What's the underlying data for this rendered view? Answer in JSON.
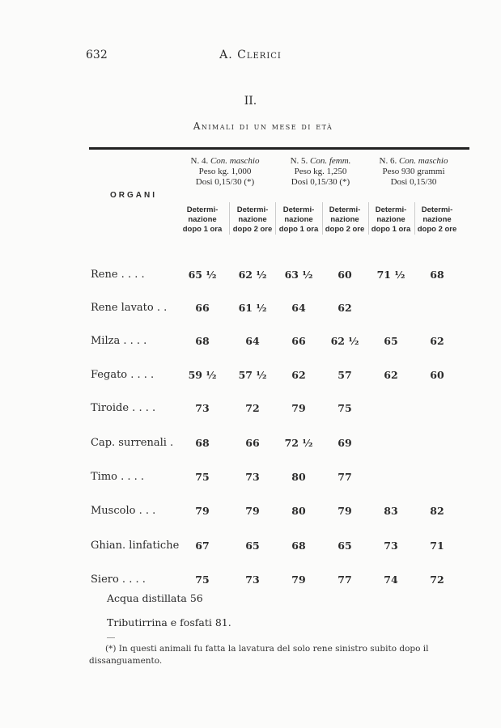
{
  "header": {
    "page_number": "632",
    "running_title": "A. Clerici"
  },
  "section": {
    "number": "II.",
    "title": "Animali di un mese di età"
  },
  "table": {
    "row_header": "ORGANI",
    "groups": [
      {
        "line1_num": "N. 4.",
        "line1_desc": "Con. maschio",
        "line2": "Peso kg. 1,000",
        "line3": "Dosi 0,15/30 (*)"
      },
      {
        "line1_num": "N. 5.",
        "line1_desc": "Con. femm.",
        "line2": "Peso kg. 1,250",
        "line3": "Dosi 0,15/30 (*)"
      },
      {
        "line1_num": "N. 6.",
        "line1_desc": "Con. maschio",
        "line2": "Peso 930 grammi",
        "line3": "Dosi 0,15/30"
      }
    ],
    "subheaders": [
      "Determi-\nnazione\ndopo 1 ora",
      "Determi-\nnazione\ndopo 2 ore",
      "Determi-\nnazione\ndopo 1 ora",
      "Determi-\nnazione\ndopo 2 ore",
      "Determi-\nnazione\ndopo 1 ora",
      "Determi-\nnazione\ndopo 2 ore"
    ],
    "rows": [
      {
        "organ": "Rene . . . .",
        "values": [
          "65 ½",
          "62 ½",
          "63 ½",
          "60",
          "71 ½",
          "68"
        ]
      },
      {
        "organ": "Rene lavato . .",
        "values": [
          "66",
          "61 ½",
          "64",
          "62",
          "",
          ""
        ]
      },
      {
        "organ": "Milza . . . .",
        "values": [
          "68",
          "64",
          "66",
          "62 ½",
          "65",
          "62"
        ]
      },
      {
        "organ": "Fegato . . . .",
        "values": [
          "59 ½",
          "57 ½",
          "62",
          "57",
          "62",
          "60"
        ]
      },
      {
        "organ": "Tiroide . . . .",
        "values": [
          "73",
          "72",
          "79",
          "75",
          "",
          ""
        ]
      },
      {
        "organ": "Cap. surrenali .",
        "values": [
          "68",
          "66",
          "72 ½",
          "69",
          "",
          ""
        ]
      },
      {
        "organ": "Timo . . . .",
        "values": [
          "75",
          "73",
          "80",
          "77",
          "",
          ""
        ]
      },
      {
        "organ": "Muscolo . . .",
        "values": [
          "79",
          "79",
          "80",
          "79",
          "83",
          "82"
        ]
      },
      {
        "organ": "Ghian. linfatiche",
        "values": [
          "67",
          "65",
          "68",
          "65",
          "73",
          "71"
        ]
      },
      {
        "organ": "Siero . . . .",
        "values": [
          "75",
          "73",
          "79",
          "77",
          "74",
          "72"
        ]
      }
    ]
  },
  "notes": [
    "Acqua distillata 56",
    "Tributirrina e fosfati 81."
  ],
  "footnote": {
    "line1": "(*) In questi animali fu fatta la lavatura del solo rene sinistro subito dopo il",
    "line2": "dissanguamento."
  }
}
